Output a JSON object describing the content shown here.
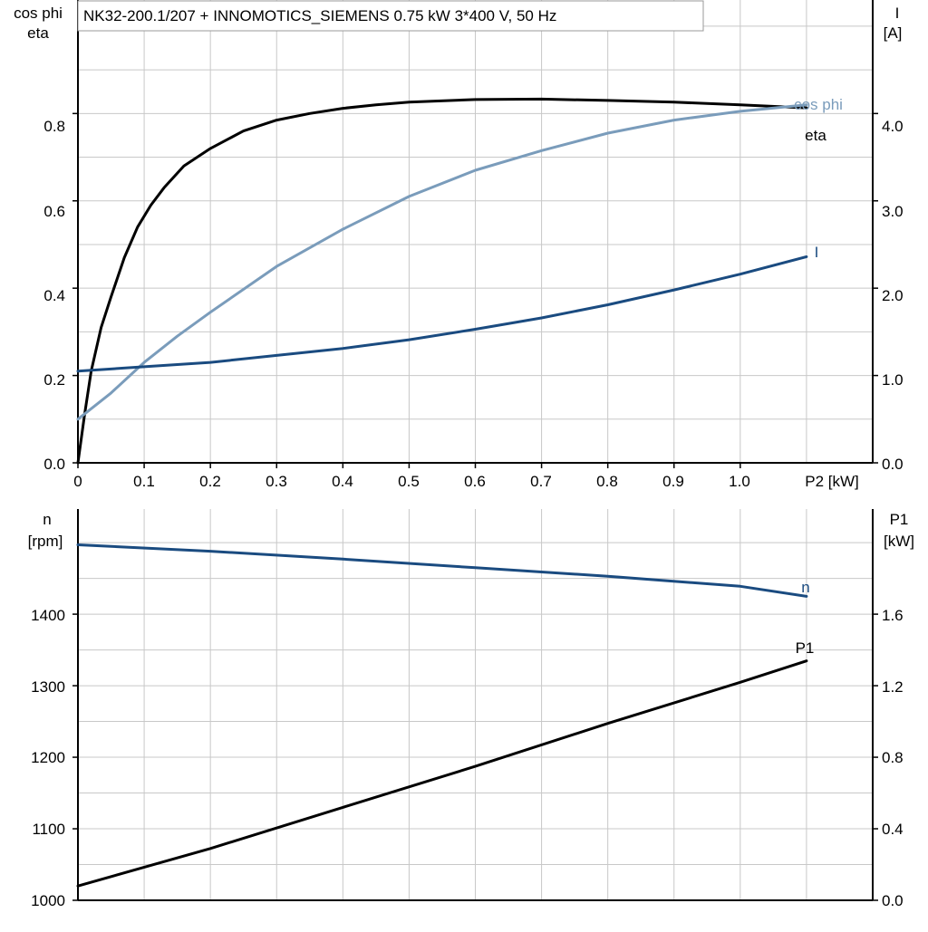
{
  "title": "NK32-200.1/207 + INNOMOTICS_SIEMENS   0.75 kW   3*400 V, 50 Hz",
  "colors": {
    "eta": "#000000",
    "cos_phi": "#7a9cbb",
    "current": "#1a4b80",
    "speed": "#1a4b80",
    "p1": "#000000",
    "grid": "#c8c8c8",
    "axis": "#000000"
  },
  "chart_data": [
    {
      "type": "line",
      "x_axis": {
        "label": "P2 [kW]",
        "range": [
          0,
          1.2
        ],
        "ticks": [
          "0",
          "0.1",
          "0.2",
          "0.3",
          "0.4",
          "0.5",
          "0.6",
          "0.7",
          "0.8",
          "0.9",
          "1.0"
        ]
      },
      "y_left": {
        "label_lines": [
          "cos phi",
          "eta"
        ],
        "range": [
          0,
          1.06
        ],
        "ticks": [
          "0.0",
          "0.2",
          "0.4",
          "0.6",
          "0.8"
        ]
      },
      "y_right": {
        "label_lines": [
          "I",
          "[A]"
        ],
        "range": [
          0,
          5.3
        ],
        "ticks": [
          "0.0",
          "1.0",
          "2.0",
          "3.0",
          "4.0"
        ]
      },
      "grid": true,
      "series": [
        {
          "name": "eta",
          "axis": "left",
          "x": [
            0,
            0.01,
            0.02,
            0.035,
            0.05,
            0.07,
            0.09,
            0.11,
            0.13,
            0.16,
            0.2,
            0.25,
            0.3,
            0.35,
            0.4,
            0.45,
            0.5,
            0.6,
            0.7,
            0.8,
            0.9,
            1.0,
            1.1
          ],
          "y": [
            0,
            0.11,
            0.21,
            0.31,
            0.38,
            0.47,
            0.54,
            0.59,
            0.63,
            0.68,
            0.72,
            0.76,
            0.785,
            0.8,
            0.812,
            0.82,
            0.826,
            0.832,
            0.833,
            0.83,
            0.826,
            0.82,
            0.813
          ]
        },
        {
          "name": "cos phi",
          "axis": "left",
          "x": [
            0,
            0.05,
            0.1,
            0.15,
            0.2,
            0.3,
            0.4,
            0.5,
            0.6,
            0.7,
            0.8,
            0.9,
            1.0,
            1.1
          ],
          "y": [
            0.1,
            0.16,
            0.23,
            0.29,
            0.345,
            0.45,
            0.535,
            0.61,
            0.67,
            0.715,
            0.755,
            0.785,
            0.805,
            0.82
          ]
        },
        {
          "name": "I",
          "axis": "right",
          "x": [
            0,
            0.1,
            0.2,
            0.3,
            0.4,
            0.5,
            0.6,
            0.7,
            0.8,
            0.9,
            1.0,
            1.1
          ],
          "y": [
            1.05,
            1.1,
            1.15,
            1.23,
            1.31,
            1.41,
            1.53,
            1.66,
            1.81,
            1.98,
            2.16,
            2.36
          ]
        }
      ],
      "annotations": [
        "cos phi",
        "eta",
        "I"
      ]
    },
    {
      "type": "line",
      "x_axis": {
        "range": [
          0,
          1.2
        ]
      },
      "y_left": {
        "label_lines": [
          "n",
          "[rpm]"
        ],
        "range": [
          1000,
          1547
        ],
        "ticks": [
          "1000",
          "1100",
          "1200",
          "1300",
          "1400"
        ]
      },
      "y_right": {
        "label_lines": [
          "P1",
          "[kW]"
        ],
        "range": [
          0,
          2.19
        ],
        "ticks": [
          "0.0",
          "0.4",
          "0.8",
          "1.2",
          "1.6"
        ]
      },
      "grid": true,
      "series": [
        {
          "name": "n",
          "axis": "left",
          "x": [
            0,
            0.2,
            0.4,
            0.6,
            0.8,
            1.0,
            1.1
          ],
          "y": [
            1497,
            1488,
            1477,
            1465,
            1453,
            1439,
            1425
          ]
        },
        {
          "name": "P1",
          "axis": "right",
          "x": [
            0,
            0.2,
            0.4,
            0.6,
            0.8,
            1.0,
            1.1
          ],
          "y": [
            0.08,
            0.29,
            0.52,
            0.75,
            0.99,
            1.22,
            1.34
          ]
        }
      ],
      "annotations": [
        "n",
        "P1"
      ]
    }
  ]
}
